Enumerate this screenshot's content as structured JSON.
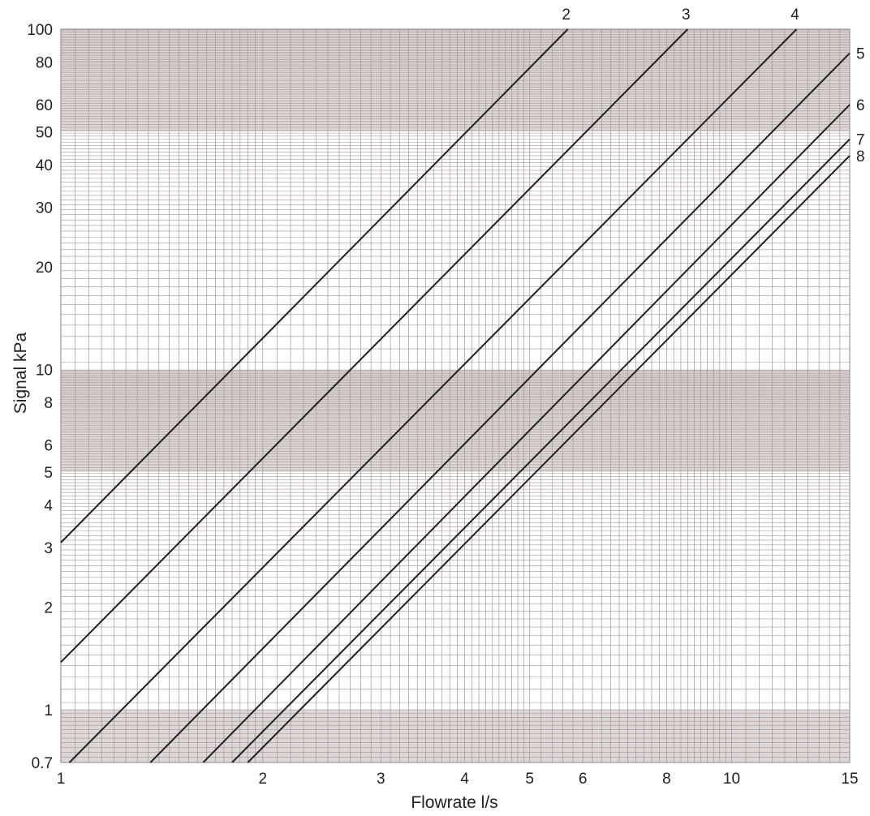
{
  "chart_data": {
    "type": "line",
    "xlabel": "Flowrate l/s",
    "ylabel": "Signal kPa",
    "x_scale": "log",
    "y_scale": "log",
    "xlim": [
      1,
      15
    ],
    "ylim": [
      0.7,
      100
    ],
    "grid": true,
    "x_ticks": [
      {
        "value": 1,
        "label": "1"
      },
      {
        "value": 2,
        "label": "2"
      },
      {
        "value": 3,
        "label": "3"
      },
      {
        "value": 4,
        "label": "4"
      },
      {
        "value": 5,
        "label": "5"
      },
      {
        "value": 6,
        "label": "6"
      },
      {
        "value": 8,
        "label": "8"
      },
      {
        "value": 10,
        "label": "10"
      },
      {
        "value": 15,
        "label": "15"
      }
    ],
    "y_ticks": [
      {
        "value": 0.7,
        "label": "0.7"
      },
      {
        "value": 1,
        "label": "1"
      },
      {
        "value": 2,
        "label": "2"
      },
      {
        "value": 3,
        "label": "3"
      },
      {
        "value": 4,
        "label": "4"
      },
      {
        "value": 5,
        "label": "5"
      },
      {
        "value": 6,
        "label": "6"
      },
      {
        "value": 8,
        "label": "8"
      },
      {
        "value": 10,
        "label": "10"
      },
      {
        "value": 20,
        "label": "20"
      },
      {
        "value": 30,
        "label": "30"
      },
      {
        "value": 40,
        "label": "40"
      },
      {
        "value": 50,
        "label": "50"
      },
      {
        "value": 60,
        "label": "60"
      },
      {
        "value": 80,
        "label": "80"
      },
      {
        "value": 100,
        "label": "100"
      }
    ],
    "series": [
      {
        "name": "2",
        "points": [
          [
            1,
            3.1
          ],
          [
            5.7,
            100
          ]
        ]
      },
      {
        "name": "3",
        "points": [
          [
            1,
            1.38
          ],
          [
            8.6,
            100
          ]
        ]
      },
      {
        "name": "4",
        "points": [
          [
            1.03,
            0.7
          ],
          [
            12.5,
            100
          ]
        ]
      },
      {
        "name": "5",
        "points": [
          [
            1.36,
            0.7
          ],
          [
            15,
            85
          ]
        ]
      },
      {
        "name": "6",
        "points": [
          [
            1.63,
            0.7
          ],
          [
            15,
            60
          ]
        ]
      },
      {
        "name": "7",
        "points": [
          [
            1.8,
            0.7
          ],
          [
            15,
            47.5
          ]
        ]
      },
      {
        "name": "8",
        "points": [
          [
            1.9,
            0.7
          ],
          [
            15,
            42.5
          ]
        ]
      }
    ],
    "colors": {
      "grid": "#a19694",
      "band": "#b3a8a6",
      "line": "#231f20",
      "text": "#231f20"
    }
  }
}
